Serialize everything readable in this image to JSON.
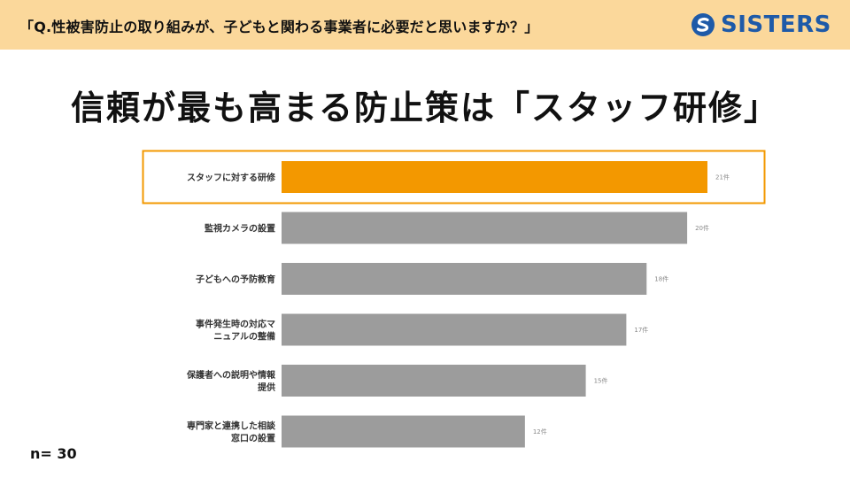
{
  "header": {
    "question": "「Q.性被害防止の取り組みが、子どもと関わる事業者に必要だと思いますか？」",
    "brand": "SISTERS"
  },
  "headline": "信頼が最も高まる防止策は「スタッフ研修」",
  "sample_size": "n= 30",
  "colors": {
    "accent": "#f39800",
    "bar": "#9c9c9c",
    "header_bg": "#fbd89b",
    "brand": "#1e5aa8"
  },
  "chart_data": {
    "type": "bar",
    "orientation": "horizontal",
    "categories": [
      [
        "スタッフに対する研修"
      ],
      [
        "監視カメラの設置"
      ],
      [
        "子どもへの予防教育"
      ],
      [
        "事件発生時の対応マ",
        "ニュアルの整備"
      ],
      [
        "保護者への説明や情報",
        "提供"
      ],
      [
        "専門家と連携した相談",
        "窓口の設置"
      ]
    ],
    "values": [
      21,
      20,
      18,
      17,
      15,
      12
    ],
    "value_labels": [
      "21件",
      "20件",
      "18件",
      "17件",
      "15件",
      "12件"
    ],
    "highlight_index": 0,
    "xlim": [
      0,
      21
    ],
    "grid": false,
    "legend": false
  }
}
